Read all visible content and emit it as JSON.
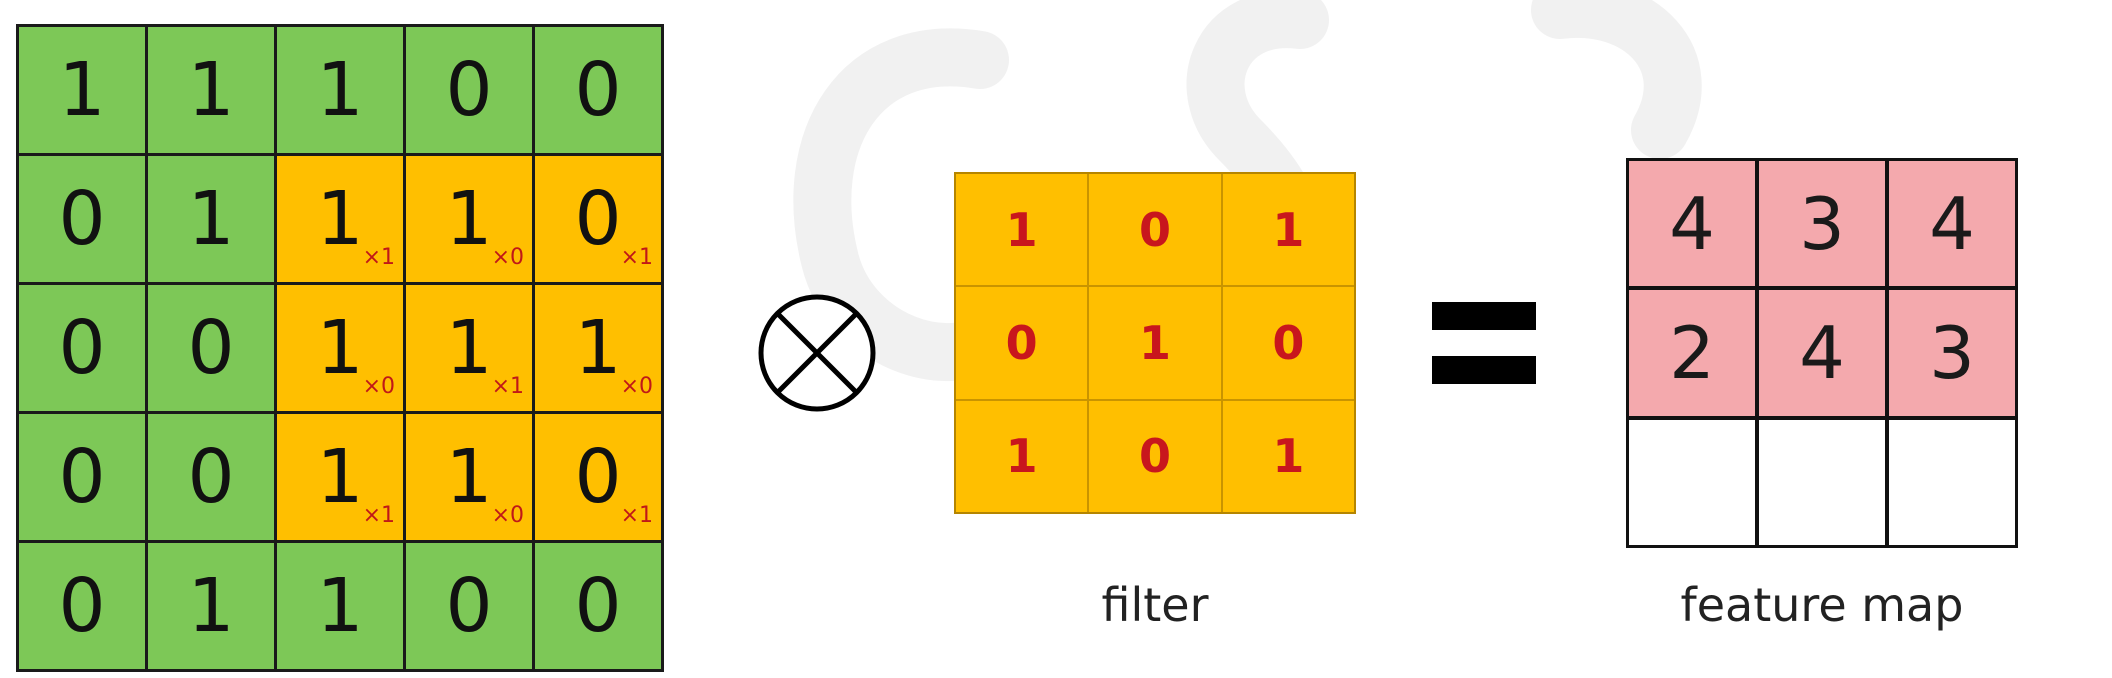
{
  "input": {
    "rows": [
      [
        {
          "v": "1",
          "c": "green",
          "w": ""
        },
        {
          "v": "1",
          "c": "green",
          "w": ""
        },
        {
          "v": "1",
          "c": "green",
          "w": ""
        },
        {
          "v": "0",
          "c": "green",
          "w": ""
        },
        {
          "v": "0",
          "c": "green",
          "w": ""
        }
      ],
      [
        {
          "v": "0",
          "c": "green",
          "w": ""
        },
        {
          "v": "1",
          "c": "green",
          "w": ""
        },
        {
          "v": "1",
          "c": "orange",
          "w": "×1"
        },
        {
          "v": "1",
          "c": "orange",
          "w": "×0"
        },
        {
          "v": "0",
          "c": "orange",
          "w": "×1"
        }
      ],
      [
        {
          "v": "0",
          "c": "green",
          "w": ""
        },
        {
          "v": "0",
          "c": "green",
          "w": ""
        },
        {
          "v": "1",
          "c": "orange",
          "w": "×0"
        },
        {
          "v": "1",
          "c": "orange",
          "w": "×1"
        },
        {
          "v": "1",
          "c": "orange",
          "w": "×0"
        }
      ],
      [
        {
          "v": "0",
          "c": "green",
          "w": ""
        },
        {
          "v": "0",
          "c": "green",
          "w": ""
        },
        {
          "v": "1",
          "c": "orange",
          "w": "×1"
        },
        {
          "v": "1",
          "c": "orange",
          "w": "×0"
        },
        {
          "v": "0",
          "c": "orange",
          "w": "×1"
        }
      ],
      [
        {
          "v": "0",
          "c": "green",
          "w": ""
        },
        {
          "v": "1",
          "c": "green",
          "w": ""
        },
        {
          "v": "1",
          "c": "green",
          "w": ""
        },
        {
          "v": "0",
          "c": "green",
          "w": ""
        },
        {
          "v": "0",
          "c": "green",
          "w": ""
        }
      ]
    ]
  },
  "operator_icon": "circled-times-icon",
  "filter": {
    "label": "filter",
    "rows": [
      [
        "1",
        "0",
        "1"
      ],
      [
        "0",
        "1",
        "0"
      ],
      [
        "1",
        "0",
        "1"
      ]
    ]
  },
  "equals_icon": "equals-icon",
  "feature_map": {
    "label": "feature map",
    "rows": [
      [
        "4",
        "3",
        "4"
      ],
      [
        "2",
        "4",
        "3"
      ],
      [
        "",
        "",
        ""
      ]
    ]
  },
  "colors": {
    "green": "#7dc857",
    "orange": "#ffbf00",
    "pink": "#f4a9ad",
    "weight_red": "#c01818"
  }
}
